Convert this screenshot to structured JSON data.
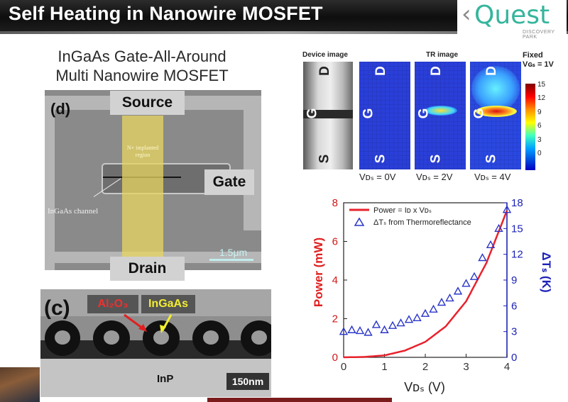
{
  "title": "Self Heating in Nanowire MOSFET",
  "logo": {
    "word": "Quest",
    "sub": "DISCOVERY PARK"
  },
  "heading": {
    "line1": "InGaAs Gate-All-Around",
    "line2": "Multi Nanowire MOSFET"
  },
  "sem": {
    "panel": "(d)",
    "source": "Source",
    "gate": "Gate",
    "drain": "Drain",
    "implant1": "N+ implanted",
    "implant2": "region",
    "channel": "InGaAs channel",
    "scale": "1.5μm"
  },
  "tem": {
    "panel": "(c)",
    "oxide": "Al₂O₃",
    "ingaas": "InGaAs",
    "substrate": "InP",
    "scale": "150nm"
  },
  "thermal": {
    "device_label": "Device image",
    "tr_label": "TR image",
    "fixed_line1": "Fixed",
    "fixed_line2": "Vɢₛ = 1V",
    "colorbar_ticks": [
      "15",
      "12",
      "9",
      "6",
      "3",
      "0"
    ],
    "letters": {
      "d": "D",
      "g": "G",
      "s": "S"
    },
    "vds": [
      "Vᴅₛ = 0V",
      "Vᴅₛ = 2V",
      "Vᴅₛ = 4V"
    ]
  },
  "chart_data": {
    "type": "line",
    "xlabel": "Vᴅₛ (V)",
    "ylabel_left": "Power (mW)",
    "ylabel_right": "ΔTₛ (K)",
    "xlim": [
      0,
      4
    ],
    "ylim_left": [
      0,
      8
    ],
    "ylim_right": [
      0,
      18
    ],
    "x_ticks": [
      "0",
      "1",
      "2",
      "3",
      "4"
    ],
    "y_left_ticks": [
      "0",
      "2",
      "4",
      "6",
      "8"
    ],
    "y_right_ticks": [
      "0",
      "3",
      "6",
      "9",
      "12",
      "15",
      "18"
    ],
    "legend": [
      "Power = Iᴅ x Vᴅₛ",
      "ΔTₛ from Thermoreflectance"
    ],
    "series": [
      {
        "name": "Power = Iᴅ x Vᴅₛ",
        "axis": "left",
        "color": "#e8222c",
        "x": [
          0,
          0.5,
          1.0,
          1.5,
          2.0,
          2.5,
          3.0,
          3.5,
          4.0
        ],
        "y": [
          0,
          0.02,
          0.1,
          0.35,
          0.8,
          1.6,
          2.9,
          4.9,
          7.6
        ]
      },
      {
        "name": "ΔTₛ from Thermoreflectance",
        "axis": "right",
        "color": "#2a35c8",
        "x": [
          0,
          0.2,
          0.4,
          0.6,
          0.8,
          1.0,
          1.2,
          1.4,
          1.6,
          1.8,
          2.0,
          2.2,
          2.4,
          2.6,
          2.8,
          3.0,
          3.2,
          3.4,
          3.6,
          3.8,
          4.0
        ],
        "y": [
          3.0,
          3.2,
          3.1,
          2.9,
          3.8,
          3.2,
          3.7,
          4.0,
          4.4,
          4.6,
          5.1,
          5.6,
          6.4,
          6.9,
          7.7,
          8.6,
          9.4,
          11.6,
          13.1,
          15.0,
          17.2
        ]
      }
    ]
  }
}
